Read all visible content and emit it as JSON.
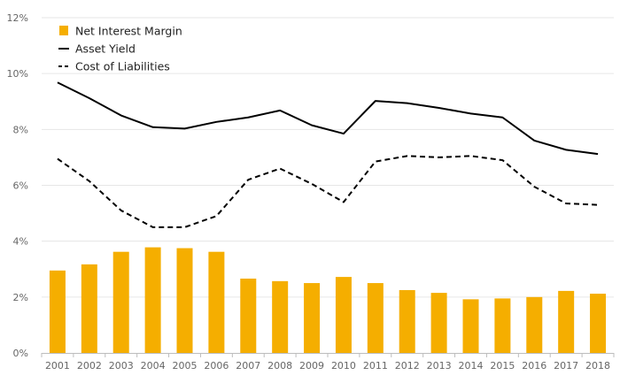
{
  "chart_data": {
    "type": "bar",
    "title": "",
    "xlabel": "",
    "ylabel": "",
    "categories": [
      "2001",
      "2002",
      "2003",
      "2004",
      "2005",
      "2006",
      "2007",
      "2008",
      "2009",
      "2010",
      "2011",
      "2012",
      "2013",
      "2014",
      "2015",
      "2016",
      "2017",
      "2018"
    ],
    "ylim": [
      0,
      12
    ],
    "yticks": [
      0,
      2,
      4,
      6,
      8,
      10,
      12
    ],
    "ytick_labels": [
      "0%",
      "2%",
      "4%",
      "6%",
      "8%",
      "10%",
      "12%"
    ],
    "grid": true,
    "legend_position": "top-left",
    "series": [
      {
        "name": "Net Interest Margin",
        "type": "bar",
        "color": "#F5AE00",
        "values": [
          2.95,
          3.17,
          3.62,
          3.78,
          3.75,
          3.62,
          2.66,
          2.57,
          2.5,
          2.72,
          2.5,
          2.25,
          2.15,
          1.92,
          1.95,
          2.0,
          2.22,
          2.12
        ]
      },
      {
        "name": "Asset Yield",
        "type": "line",
        "style": "solid",
        "color": "#000000",
        "values": [
          9.68,
          9.12,
          8.5,
          8.08,
          8.03,
          8.27,
          8.43,
          8.68,
          8.15,
          7.85,
          9.02,
          8.94,
          8.77,
          8.57,
          8.43,
          7.6,
          7.27,
          7.12
        ]
      },
      {
        "name": "Cost of Liabilities",
        "type": "line",
        "style": "dashed",
        "color": "#000000",
        "values": [
          6.95,
          6.15,
          5.1,
          4.5,
          4.5,
          4.9,
          6.2,
          6.6,
          6.05,
          5.4,
          6.85,
          7.05,
          7.0,
          7.05,
          6.9,
          5.95,
          5.35,
          5.3
        ]
      }
    ]
  },
  "legend": {
    "items": [
      {
        "label": "Net Interest Margin",
        "kind": "bar",
        "color": "#F5AE00"
      },
      {
        "label": "Asset Yield",
        "kind": "solid-line",
        "color": "#000000"
      },
      {
        "label": "Cost of Liabilities",
        "kind": "dashed-line",
        "color": "#000000"
      }
    ]
  }
}
